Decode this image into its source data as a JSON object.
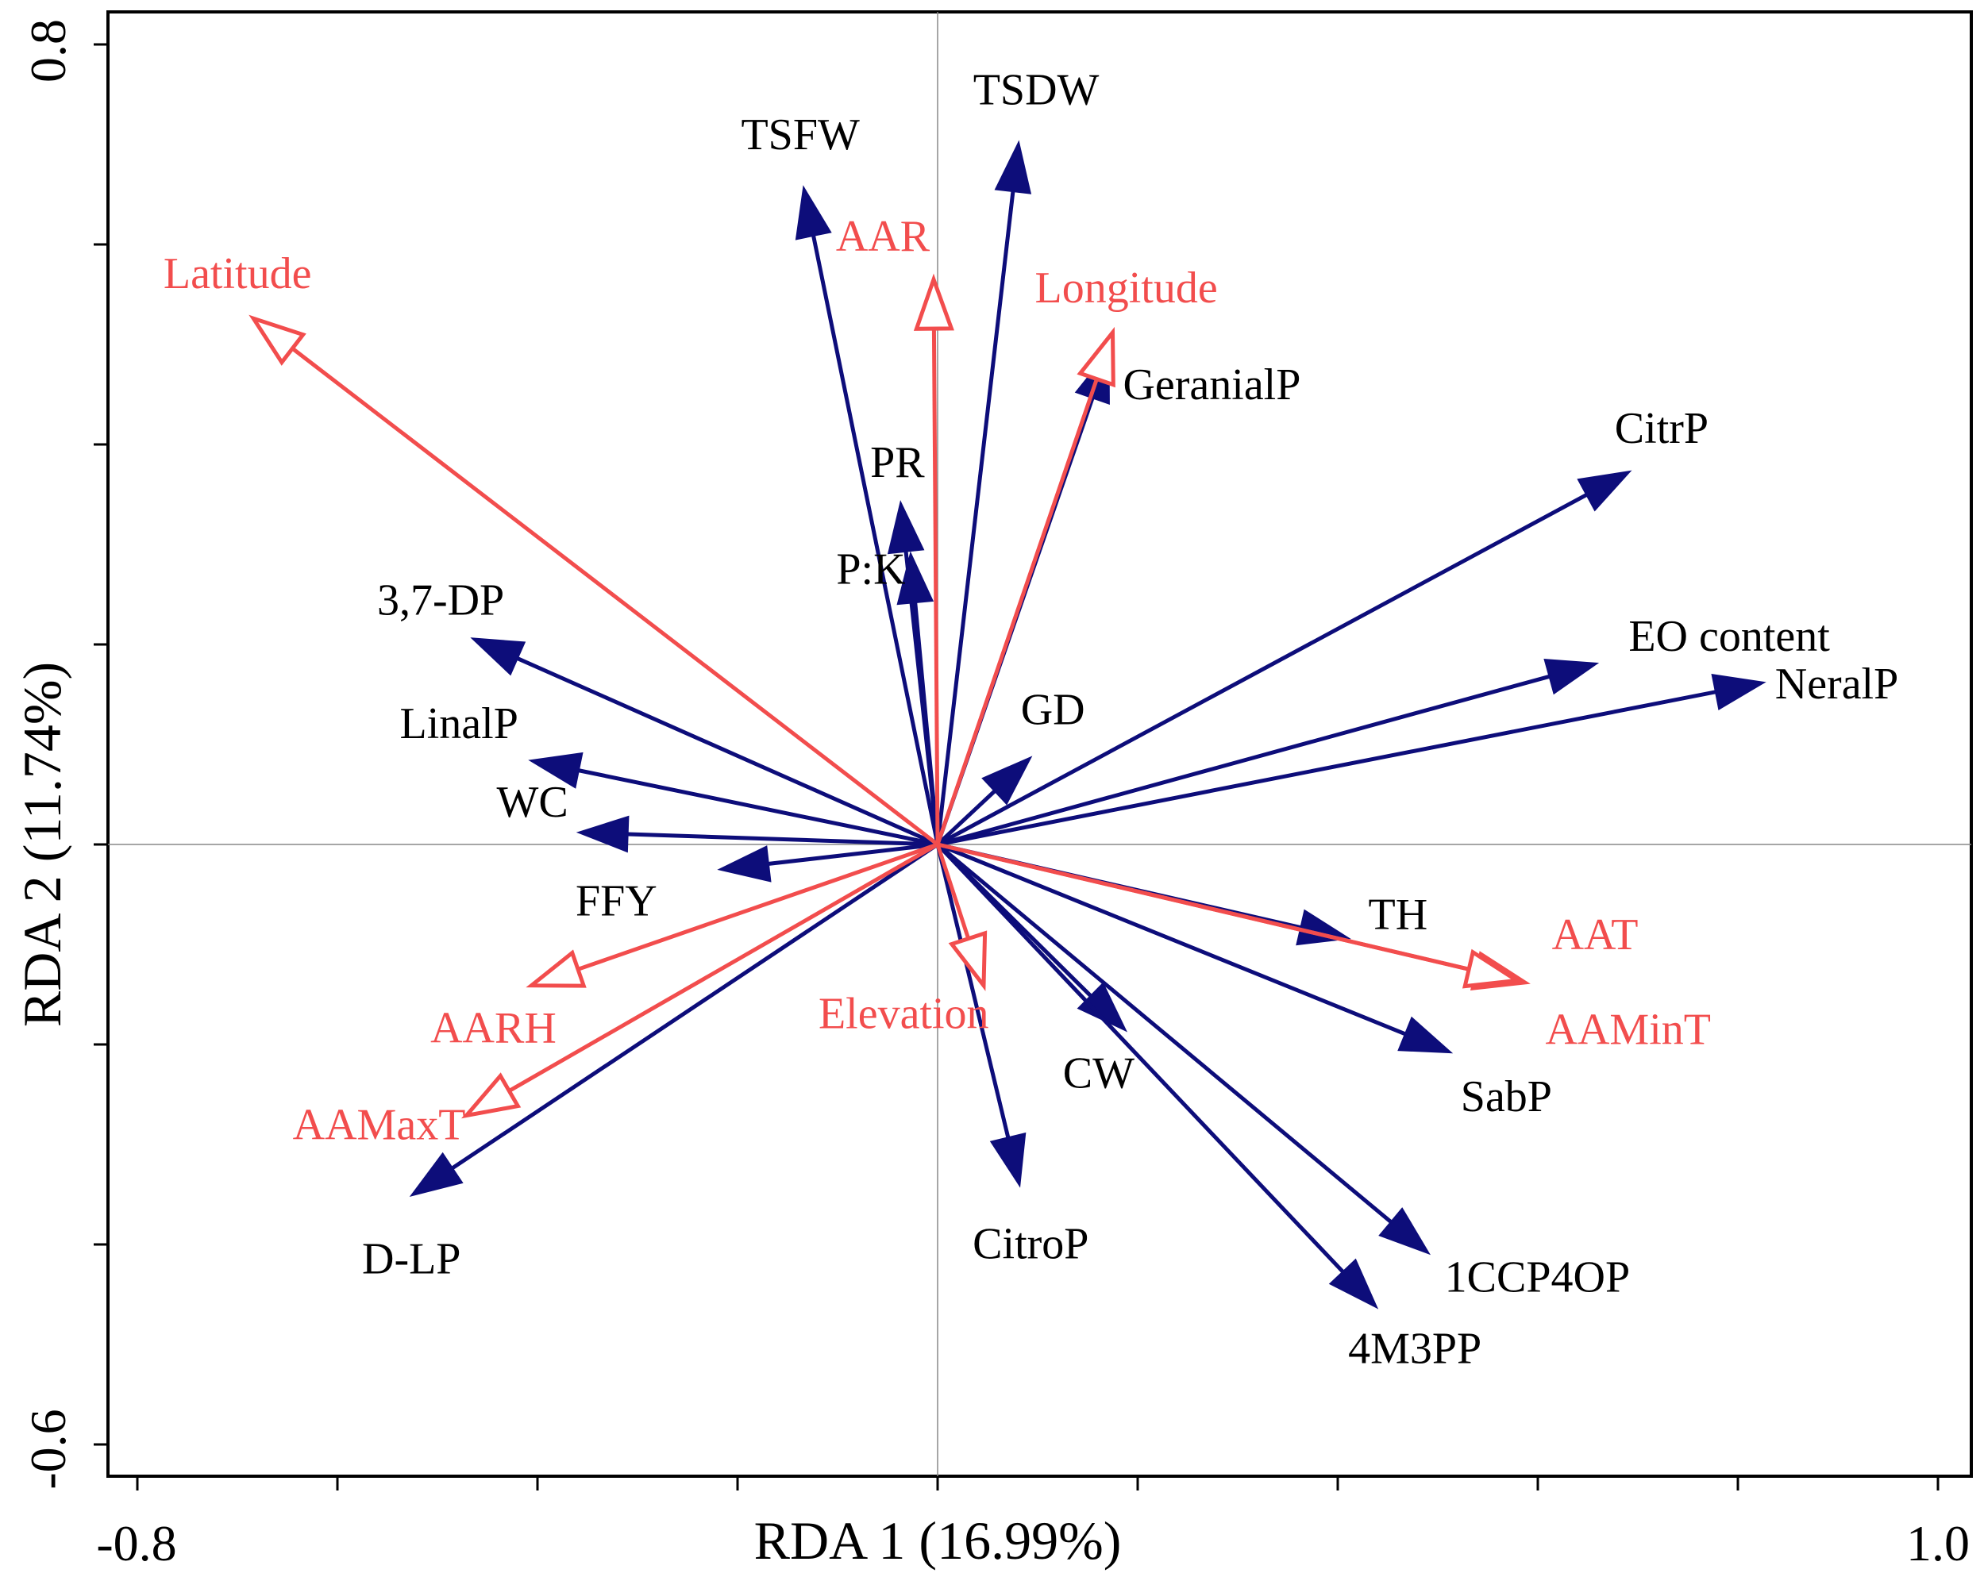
{
  "chart_data": {
    "type": "biplot",
    "title": "",
    "xlabel": "RDA 1 (16.99%)",
    "ylabel": "RDA 2 (11.74%)",
    "xlim": [
      -0.8,
      1.0
    ],
    "ylim": [
      -0.6,
      0.8
    ],
    "x_tick_labels": [
      "-0.8",
      "1.0"
    ],
    "y_tick_labels": [
      "-0.6",
      "0.8"
    ],
    "colors": {
      "response": "#0d0d7a",
      "explanatory": "#f24d4d"
    },
    "series": [
      {
        "name": "response variables",
        "color": "#0d0d7a",
        "head": "filled",
        "vectors": [
          {
            "label": "TSDW",
            "x": 0.081,
            "y": 0.702
          },
          {
            "label": "TSFW",
            "x": -0.134,
            "y": 0.657
          },
          {
            "label": "GeranialP",
            "x": 0.171,
            "y": 0.493
          },
          {
            "label": "CitrP",
            "x": 0.692,
            "y": 0.373
          },
          {
            "label": "PR",
            "x": -0.037,
            "y": 0.342
          },
          {
            "label": "P:K",
            "x": -0.027,
            "y": 0.291
          },
          {
            "label": "3,7-DP",
            "x": -0.465,
            "y": 0.206
          },
          {
            "label": "EO content",
            "x": 0.659,
            "y": 0.181
          },
          {
            "label": "NeralP",
            "x": 0.826,
            "y": 0.162
          },
          {
            "label": "LinalP",
            "x": -0.407,
            "y": 0.084
          },
          {
            "label": "GD",
            "x": 0.093,
            "y": 0.087
          },
          {
            "label": "WC",
            "x": -0.359,
            "y": 0.012
          },
          {
            "label": "FFY",
            "x": -0.218,
            "y": -0.025
          },
          {
            "label": "TH",
            "x": 0.411,
            "y": -0.094
          },
          {
            "label": "SabP",
            "x": 0.513,
            "y": -0.208
          },
          {
            "label": "CW",
            "x": 0.188,
            "y": -0.186
          },
          {
            "label": "CitroP",
            "x": 0.082,
            "y": -0.341
          },
          {
            "label": "D-LP",
            "x": -0.526,
            "y": -0.351
          },
          {
            "label": "1CCP4OP",
            "x": 0.491,
            "y": -0.409
          },
          {
            "label": "4M3PP",
            "x": 0.439,
            "y": -0.463
          }
        ]
      },
      {
        "name": "explanatory variables",
        "color": "#f24d4d",
        "head": "open",
        "vectors": [
          {
            "label": "Latitude",
            "x": -0.684,
            "y": 0.526
          },
          {
            "label": "AAR",
            "x": -0.004,
            "y": 0.565
          },
          {
            "label": "Longitude",
            "x": 0.175,
            "y": 0.512
          },
          {
            "label": "AAT",
            "x": 0.587,
            "y": -0.138
          },
          {
            "label": "AAMinT",
            "x": 0.579,
            "y": -0.136
          },
          {
            "label": "Elevation",
            "x": 0.046,
            "y": -0.141
          },
          {
            "label": "AARH",
            "x": -0.406,
            "y": -0.141
          },
          {
            "label": "AAMaxT",
            "x": -0.471,
            "y": -0.271
          }
        ]
      }
    ]
  }
}
